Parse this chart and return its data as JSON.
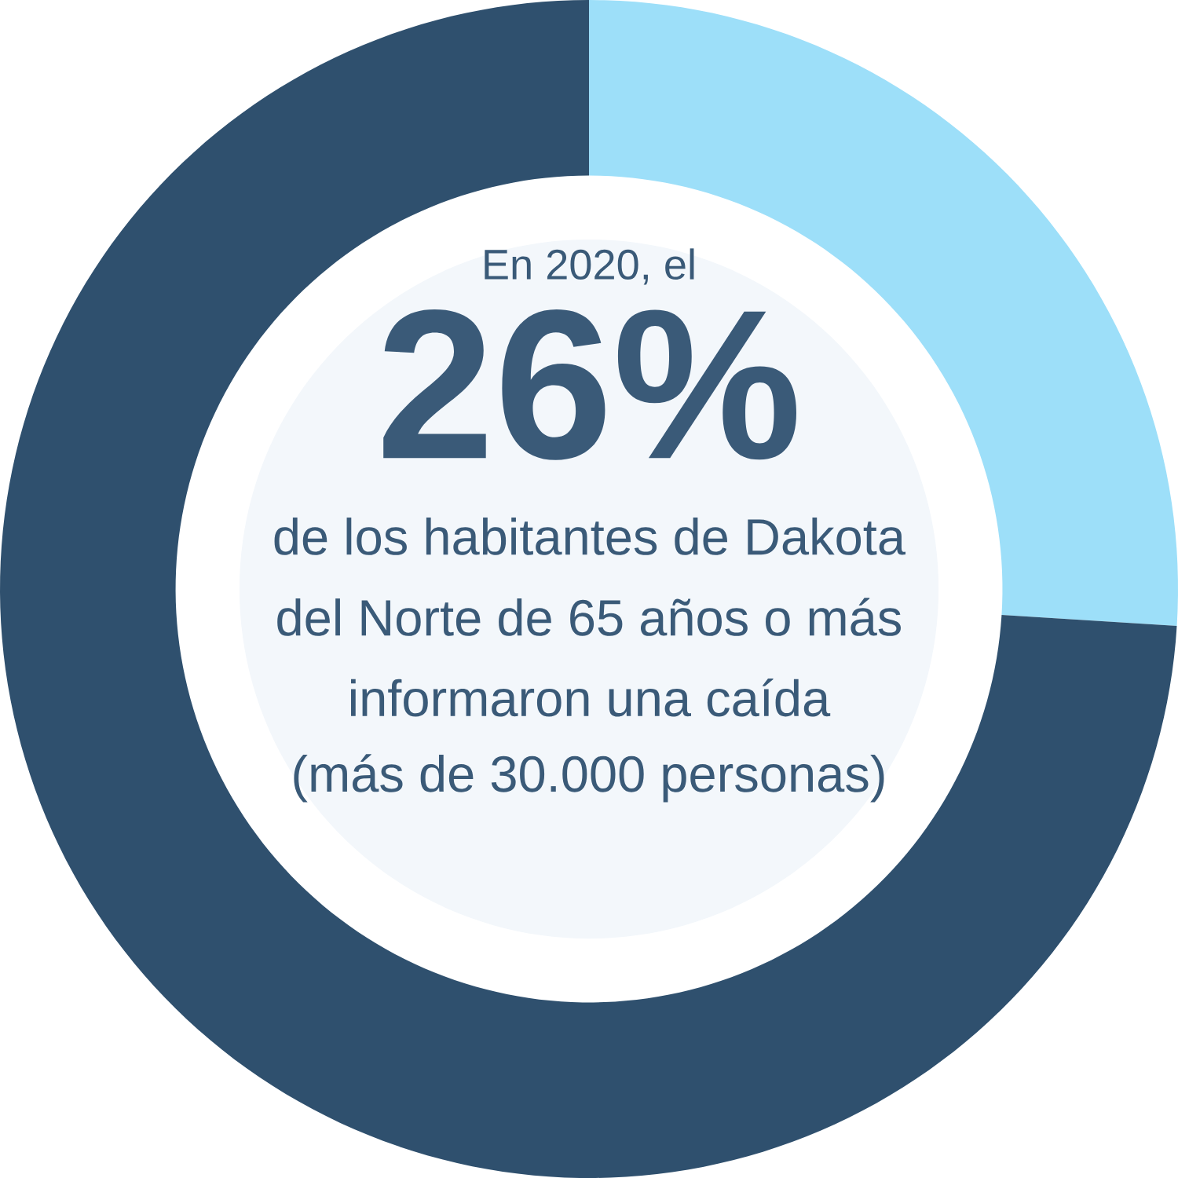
{
  "chart_data": {
    "type": "donut",
    "title": "En 2020, el",
    "categories": [
      null,
      null
    ],
    "values": [
      26,
      74
    ],
    "colors": [
      "#9ddff9",
      "#2f506e"
    ],
    "value_labels": [
      "26%",
      null
    ],
    "annotations": [
      "de los habitantes de Dakota",
      "del Norte de 65 años o más",
      "informaron una caída",
      "(más de 30.000 personas)"
    ]
  }
}
